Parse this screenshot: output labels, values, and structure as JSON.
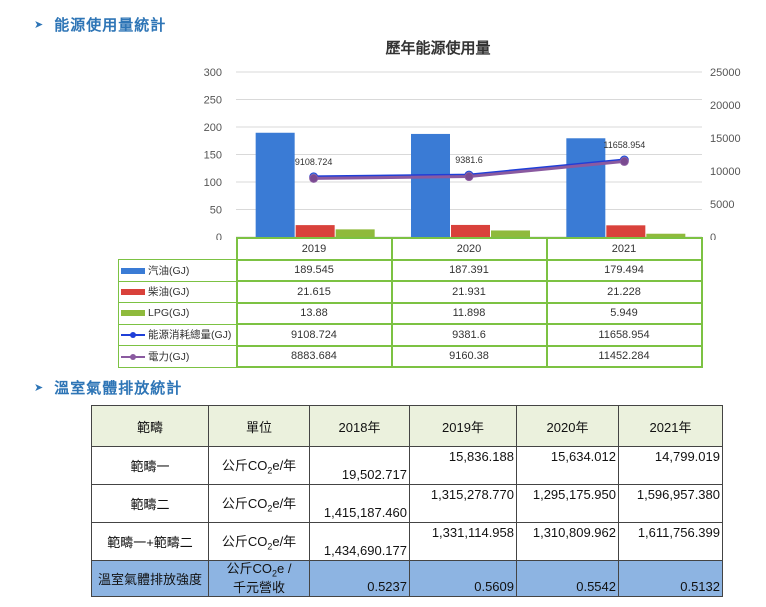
{
  "section1": {
    "title": "能源使用量統計"
  },
  "section2": {
    "title": "溫室氣體排放統計"
  },
  "chart_data": {
    "type": "bar",
    "title": "歷年能源使用量",
    "categories": [
      "2019",
      "2020",
      "2021"
    ],
    "y_left_ticks": [
      "300",
      "250",
      "200",
      "150",
      "100",
      "50",
      "0"
    ],
    "y_right_ticks": [
      "25000",
      "20000",
      "15000",
      "10000",
      "5000",
      "0"
    ],
    "ylim_left": [
      0,
      300
    ],
    "ylim_right": [
      0,
      25000
    ],
    "series": [
      {
        "name": "汽油(GJ)",
        "kind": "bar",
        "axis": "left",
        "color": "#3a7bd5",
        "values": [
          189.545,
          187.391,
          179.494
        ],
        "labels": [
          "189.545",
          "187.391",
          "179.494"
        ]
      },
      {
        "name": "柴油(GJ)",
        "kind": "bar",
        "axis": "left",
        "color": "#d9413b",
        "values": [
          21.615,
          21.931,
          21.228
        ],
        "labels": [
          "21.615",
          "21.931",
          "21.228"
        ]
      },
      {
        "name": "LPG(GJ)",
        "kind": "bar",
        "axis": "left",
        "color": "#8fba3c",
        "values": [
          13.88,
          11.898,
          5.949
        ],
        "labels": [
          "13.88",
          "11.898",
          "5.949"
        ]
      },
      {
        "name": "能源消耗總量(GJ)",
        "kind": "line",
        "axis": "right",
        "color": "#1f3fd8",
        "marker": "#4fa0d8",
        "values": [
          9108.724,
          9381.6,
          11658.954
        ],
        "labels": [
          "9108.724",
          "9381.6",
          "11658.954"
        ]
      },
      {
        "name": "電力(GJ)",
        "kind": "line",
        "axis": "right",
        "color": "#8a5aa0",
        "marker": "#7a4a90",
        "values": [
          8883.684,
          9160.38,
          11452.284
        ],
        "labels": [
          "8883.684",
          "9160.38",
          "11452.284"
        ]
      }
    ]
  },
  "ghg_table": {
    "header": [
      "範疇",
      "單位",
      "2018年",
      "2019年",
      "2020年",
      "2021年"
    ],
    "rows": [
      {
        "name": "範疇一",
        "unit_pre": "公斤CO",
        "unit_sub": "2",
        "unit_post": "e/年",
        "values": [
          "19,502.717",
          "15,836.188",
          "15,634.012",
          "14,799.019"
        ]
      },
      {
        "name": "範疇二",
        "unit_pre": "公斤CO",
        "unit_sub": "2",
        "unit_post": "e/年",
        "values": [
          "1,415,187.460",
          "1,315,278.770",
          "1,295,175.950",
          "1,596,957.380"
        ]
      },
      {
        "name": "範疇一+範疇二",
        "unit_pre": "公斤CO",
        "unit_sub": "2",
        "unit_post": "e/年",
        "values": [
          "1,434,690.177",
          "1,331,114.958",
          "1,310,809.962",
          "1,611,756.399"
        ]
      },
      {
        "name": "溫室氣體排放強度",
        "unit_pre": "公斤CO",
        "unit_sub": "2",
        "unit_post": "e /",
        "unit_line2": "千元營收",
        "values": [
          "0.5237",
          "0.5609",
          "0.5542",
          "0.5132"
        ]
      }
    ]
  }
}
